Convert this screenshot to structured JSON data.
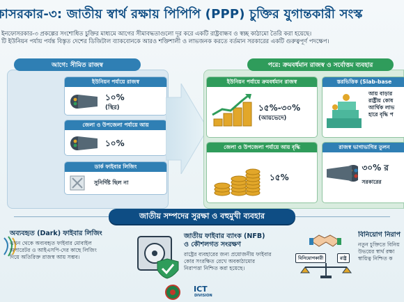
{
  "header": {
    "title": "কাসরকার-৩: জাতীয় স্বার্থ রক্ষায় পিপিপি (PPP) চুক্তির যুগান্তকারী সংস্ক",
    "intro_line1": "ইনফোসরকার-৩ প্রকল্পের সংশোধিত চুক্তির মাধ্যমে আগের সীমাবদ্ধতাগুলো দূর করে একটি রাষ্ট্রবান্ধব ও স্বচ্ছ কাঠামো তৈরি করা হয়েছে।",
    "intro_line2": "টি ইউনিয়ন পর্যায় পর্যন্ত বিস্তৃত দেশের ডিজিটাল ব্যাকবোনকে আরও শক্তিশালী ও লাভজনক করতে বর্তমান সরকারের একটি গুরুত্বপূর্ণ পদক্ষেপ।"
  },
  "left": {
    "heading": "আগে: সীমিত রাজস্ব",
    "cards": [
      {
        "title": "ইউনিয়ন পর্যায়ে রাজস্ব",
        "value": "১০%",
        "sub": "(স্থির)"
      },
      {
        "title": "জেলা ও উপজেলা পর্যায়ে আয়",
        "value": "১০%",
        "sub": ""
      },
      {
        "title": "ডার্ক ফাইবার লিজিং",
        "value": "",
        "sub": "সুনির্দিষ্ট ছিল না"
      }
    ]
  },
  "right": {
    "heading": "পরে: ক্রমবর্ধমান রাজস্ব ও সর্বোত্তম ব্যবহার",
    "cards": [
      {
        "title": "ইউনিয়ন পর্যায়ে ক্রমবর্ধমান রাজস্ব",
        "value": "১৫%-৩০%",
        "sub": "(আয়ভেদে)"
      },
      {
        "title": "স্তরভিত্তিক (Slab-base",
        "text_lines": [
          "আয় বাড়ার",
          "রাষ্ট্রীয় কোষ",
          "আর্থিক লাভ",
          "হারে বৃদ্ধি প"
        ]
      },
      {
        "title": "জেলা ও উপজেলা পর্যায়ে আয় বৃদ্ধি",
        "value": "১৫%",
        "sub": ""
      },
      {
        "title": "রাজস্ব ভাগাভাগির তুলন",
        "value": "৩০% র",
        "sub": "সরকারের"
      }
    ]
  },
  "bottom": {
    "ribbon": "জাতীয় সম্পদের সুরক্ষা ও বহুমুখী ব্যবহার",
    "items": [
      {
        "title": "অব্যবহৃত (Dark) ফাইবার লিজিং",
        "text": [
          "এখন থেকে অব্যবহৃত ফাইবার মোবাইল",
          "অপারেটর ও আইএসপি-দের কাছে লিজিং",
          "দিয়ে অতিরিক্ত রাজস্ব আয় সম্ভব।"
        ]
      },
      {
        "title": "জাতীয় ফাইবার ব্যাংক (NFB)",
        "title2": "ও কৌশলগত সংরক্ষণ",
        "text": [
          "রাষ্ট্রের ব্যবহারের জন্য প্রয়োজনীয় ফাইবার",
          "কোর সংরক্ষিত রেখে অবকাঠামোর",
          "নিরাপত্তা নিশ্চিত করা হয়েছে।"
        ]
      },
      {
        "title": "বিনিয়োগ নিরাপ",
        "label_left": "বিনিয়োগকারী",
        "label_right": "রাষ্ট্র",
        "text": [
          "নতুন চুক্তিতে বিনিয়",
          "উভয়ের স্বার্থ রক্ষা",
          "স্বায়িত্ব নিশ্চিত ক"
        ]
      }
    ]
  },
  "footer": {
    "brand": "ICT",
    "brand_sub": "DIVISION"
  },
  "colors": {
    "primary": "#0e4d84",
    "accent_blue": "#2f7fb4",
    "accent_green": "#2f9c5b",
    "coin": "#e2a72a"
  }
}
